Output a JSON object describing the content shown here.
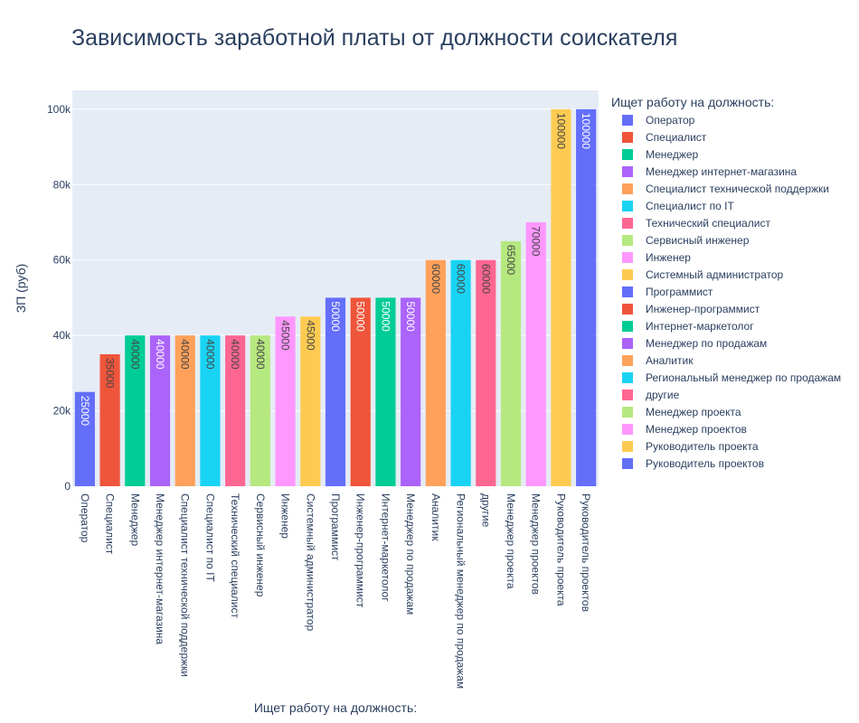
{
  "chart_data": {
    "type": "bar",
    "title": "Зависимость заработной платы от должности соискателя",
    "xlabel": "Ищет работу на должность:",
    "ylabel": "ЗП (руб)",
    "legend_title": "Ищет работу на должность:",
    "legend_position": "right",
    "ylim": [
      0,
      105000
    ],
    "yticks": [
      {
        "value": 0,
        "label": "0"
      },
      {
        "value": 20000,
        "label": "20k"
      },
      {
        "value": 40000,
        "label": "40k"
      },
      {
        "value": 60000,
        "label": "60k"
      },
      {
        "value": 80000,
        "label": "80k"
      },
      {
        "value": 100000,
        "label": "100k"
      }
    ],
    "grid": true,
    "plot_background": "#e5ecf6",
    "categories": [
      "Оператор",
      "Специалист",
      "Менеджер",
      "Менеджер интернет-магазина",
      "Специалист технической поддержки",
      "Специалист по IT",
      "Технический специалист",
      "Сервисный инженер",
      "Инженер",
      "Системный администратор",
      "Программист",
      "Инженер-программист",
      "Интернет-маркетолог",
      "Менеджер по продажам",
      "Аналитик",
      "Региональный менеджер по продажам",
      "другие",
      "Менеджер проекта",
      "Менеджер проектов",
      "Руководитель проекта",
      "Руководитель проектов"
    ],
    "values": [
      25000,
      35000,
      40000,
      40000,
      40000,
      40000,
      40000,
      40000,
      45000,
      45000,
      50000,
      50000,
      50000,
      50000,
      60000,
      60000,
      60000,
      65000,
      70000,
      100000,
      100000
    ],
    "data_labels": [
      "25000",
      "35000",
      "40000",
      "40000",
      "40000",
      "40000",
      "40000",
      "40000",
      "45000",
      "45000",
      "50000",
      "50000",
      "50000",
      "50000",
      "60000",
      "60000",
      "60000",
      "65000",
      "70000",
      "100000",
      "100000"
    ],
    "colors": [
      "#636efa",
      "#ef553b",
      "#00cc96",
      "#ab63fa",
      "#ffa15a",
      "#19d3f3",
      "#ff6692",
      "#b6e880",
      "#ff97ff",
      "#fecb52",
      "#636efa",
      "#ef553b",
      "#00cc96",
      "#ab63fa",
      "#ffa15a",
      "#19d3f3",
      "#ff6692",
      "#b6e880",
      "#ff97ff",
      "#fecb52",
      "#636efa"
    ],
    "label_colors": [
      "#ffffff",
      "#444444",
      "#444444",
      "#ffffff",
      "#444444",
      "#444444",
      "#444444",
      "#444444",
      "#444444",
      "#444444",
      "#ffffff",
      "#ffffff",
      "#ffffff",
      "#ffffff",
      "#444444",
      "#444444",
      "#444444",
      "#444444",
      "#444444",
      "#444444",
      "#ffffff"
    ]
  }
}
